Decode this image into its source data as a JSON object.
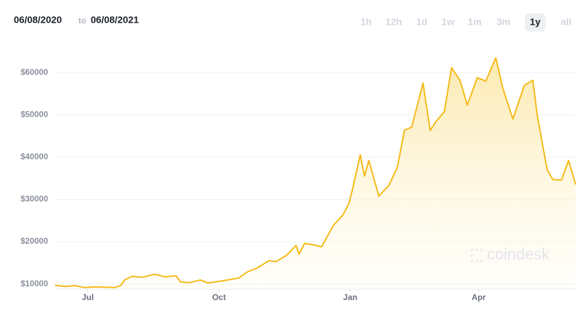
{
  "chart_data": {
    "type": "area-line",
    "range_separator": "to",
    "range_buttons": [
      "1h",
      "12h",
      "1d",
      "1w",
      "1m",
      "3m",
      "1y",
      "all"
    ],
    "selected_range": "1y",
    "watermark": "coindesk",
    "color": "#f5b914",
    "xlim": [
      "06/08/2020",
      "06/08/2021"
    ],
    "xticks": [
      {
        "value": "07/01/2020",
        "label": "Jul"
      },
      {
        "value": "10/01/2020",
        "label": "Oct"
      },
      {
        "value": "01/01/2021",
        "label": "Jan"
      },
      {
        "value": "04/01/2021",
        "label": "Apr"
      }
    ],
    "ylim": [
      8800,
      65000
    ],
    "yticks": [
      {
        "value": 10000,
        "label": "$10000"
      },
      {
        "value": 20000,
        "label": "$20000"
      },
      {
        "value": 30000,
        "label": "$30000"
      },
      {
        "value": 40000,
        "label": "$40000"
      },
      {
        "value": 50000,
        "label": "$50000"
      },
      {
        "value": 60000,
        "label": "$60000"
      }
    ],
    "grid": true,
    "x": [
      "06/08/2020",
      "06/15/2020",
      "06/22/2020",
      "06/29/2020",
      "07/06/2020",
      "07/13/2020",
      "07/20/2020",
      "07/24/2020",
      "07/27/2020",
      "08/01/2020",
      "08/08/2020",
      "08/17/2020",
      "08/24/2020",
      "09/01/2020",
      "09/04/2020",
      "09/10/2020",
      "09/18/2020",
      "09/23/2020",
      "10/01/2020",
      "10/09/2020",
      "10/15/2020",
      "10/21/2020",
      "10/27/2020",
      "11/05/2020",
      "11/10/2020",
      "11/17/2020",
      "11/24/2020",
      "11/26/2020",
      "11/30/2020",
      "12/07/2020",
      "12/12/2020",
      "12/16/2020",
      "12/20/2020",
      "12/27/2020",
      "12/31/2020",
      "01/03/2021",
      "01/08/2021",
      "01/11/2021",
      "01/14/2021",
      "01/21/2021",
      "01/28/2021",
      "02/03/2021",
      "02/08/2021",
      "02/13/2021",
      "02/21/2021",
      "02/26/2021",
      "03/02/2021",
      "03/08/2021",
      "03/13/2021",
      "03/19/2021",
      "03/24/2021",
      "03/31/2021",
      "04/06/2021",
      "04/13/2021",
      "04/18/2021",
      "04/25/2021",
      "05/03/2021",
      "05/09/2021",
      "05/12/2021",
      "05/19/2021",
      "05/23/2021",
      "05/29/2021",
      "06/03/2021",
      "06/08/2021"
    ],
    "values": [
      9700,
      9400,
      9600,
      9150,
      9300,
      9250,
      9180,
      9600,
      11000,
      11800,
      11600,
      12300,
      11700,
      11900,
      10500,
      10300,
      10950,
      10250,
      10600,
      11050,
      11450,
      12900,
      13650,
      15500,
      15300,
      16700,
      19100,
      17000,
      19600,
      19200,
      18800,
      21300,
      23800,
      26400,
      29000,
      33000,
      40600,
      35500,
      39200,
      30800,
      33300,
      37600,
      46400,
      47100,
      57500,
      46300,
      48400,
      50800,
      61200,
      58100,
      52300,
      58800,
      58000,
      63500,
      56200,
      49000,
      57000,
      58200,
      50000,
      37000,
      34700,
      34600,
      39200,
      33500
    ]
  }
}
